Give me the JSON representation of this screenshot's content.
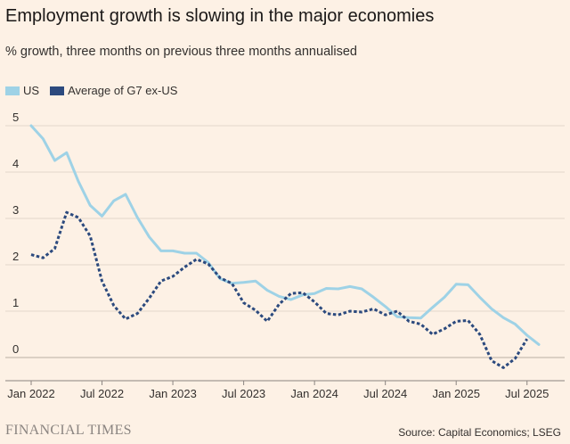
{
  "title": "Employment growth is slowing in the major economies",
  "subtitle": "% growth, three months on previous three months annualised",
  "legend": {
    "us": "US",
    "g7": "Average of G7 ex-US"
  },
  "colors": {
    "us": "#9ed2e6",
    "g7": "#2c4a7e",
    "grid": "#e3d8cc",
    "axis": "#8a8480",
    "background": "#fdf1e5"
  },
  "footer": {
    "brand": "FINANCIAL TIMES",
    "source": "Source: Capital Economics; LSEG"
  },
  "chart_data": {
    "type": "line",
    "title": "Employment growth is slowing in the major economies",
    "ylabel": "% growth, three months on previous three months annualised",
    "xlabel": "",
    "ylim": [
      -0.3,
      5
    ],
    "yticks": [
      0,
      1,
      2,
      3,
      4,
      5
    ],
    "xlim": [
      0,
      43
    ],
    "xticks": [
      {
        "x": 0,
        "label": "Jan 2022"
      },
      {
        "x": 6,
        "label": "Jul 2022"
      },
      {
        "x": 12,
        "label": "Jan 2023"
      },
      {
        "x": 18,
        "label": "Jul 2023"
      },
      {
        "x": 24,
        "label": "Jan 2024"
      },
      {
        "x": 30,
        "label": "Jul 2024"
      },
      {
        "x": 36,
        "label": "Jan 2025"
      },
      {
        "x": 42,
        "label": "Jul 2025"
      }
    ],
    "series": [
      {
        "name": "US",
        "style": "solid",
        "x": [
          0,
          1,
          2,
          3,
          4,
          5,
          6,
          7,
          8,
          9,
          10,
          11,
          12,
          13,
          14,
          15,
          16,
          17,
          18,
          19,
          20,
          21,
          22,
          23,
          24,
          25,
          26,
          27,
          28,
          29,
          30,
          31,
          32,
          33,
          34,
          35,
          36,
          37,
          38,
          39,
          40,
          41,
          42,
          43
        ],
        "values": [
          5.0,
          4.72,
          4.25,
          4.42,
          3.8,
          3.28,
          3.05,
          3.38,
          3.52,
          3.02,
          2.6,
          2.3,
          2.3,
          2.25,
          2.25,
          2.05,
          1.7,
          1.6,
          1.62,
          1.65,
          1.45,
          1.32,
          1.25,
          1.35,
          1.38,
          1.49,
          1.48,
          1.53,
          1.48,
          1.3,
          1.1,
          0.88,
          0.86,
          0.85,
          1.08,
          1.3,
          1.58,
          1.57,
          1.3,
          1.05,
          0.86,
          0.72,
          0.48,
          0.28
        ]
      },
      {
        "name": "Average of G7 ex-US",
        "style": "dashed",
        "x": [
          0,
          1,
          2,
          3,
          4,
          5,
          6,
          7,
          8,
          9,
          10,
          11,
          12,
          13,
          14,
          15,
          16,
          17,
          18,
          19,
          20,
          21,
          22,
          23,
          24,
          25,
          26,
          27,
          28,
          29,
          30,
          31,
          32,
          33,
          34,
          35,
          36,
          37,
          38,
          39,
          40,
          41,
          42
        ],
        "values": [
          2.22,
          2.15,
          2.35,
          3.13,
          3.02,
          2.62,
          1.65,
          1.12,
          0.83,
          0.95,
          1.28,
          1.65,
          1.75,
          1.95,
          2.12,
          2.02,
          1.72,
          1.6,
          1.18,
          1.02,
          0.78,
          1.15,
          1.38,
          1.4,
          1.2,
          0.95,
          0.92,
          1.0,
          0.98,
          1.05,
          0.92,
          1.0,
          0.78,
          0.72,
          0.5,
          0.62,
          0.78,
          0.8,
          0.5,
          -0.07,
          -0.22,
          -0.02,
          0.4
        ]
      }
    ]
  }
}
